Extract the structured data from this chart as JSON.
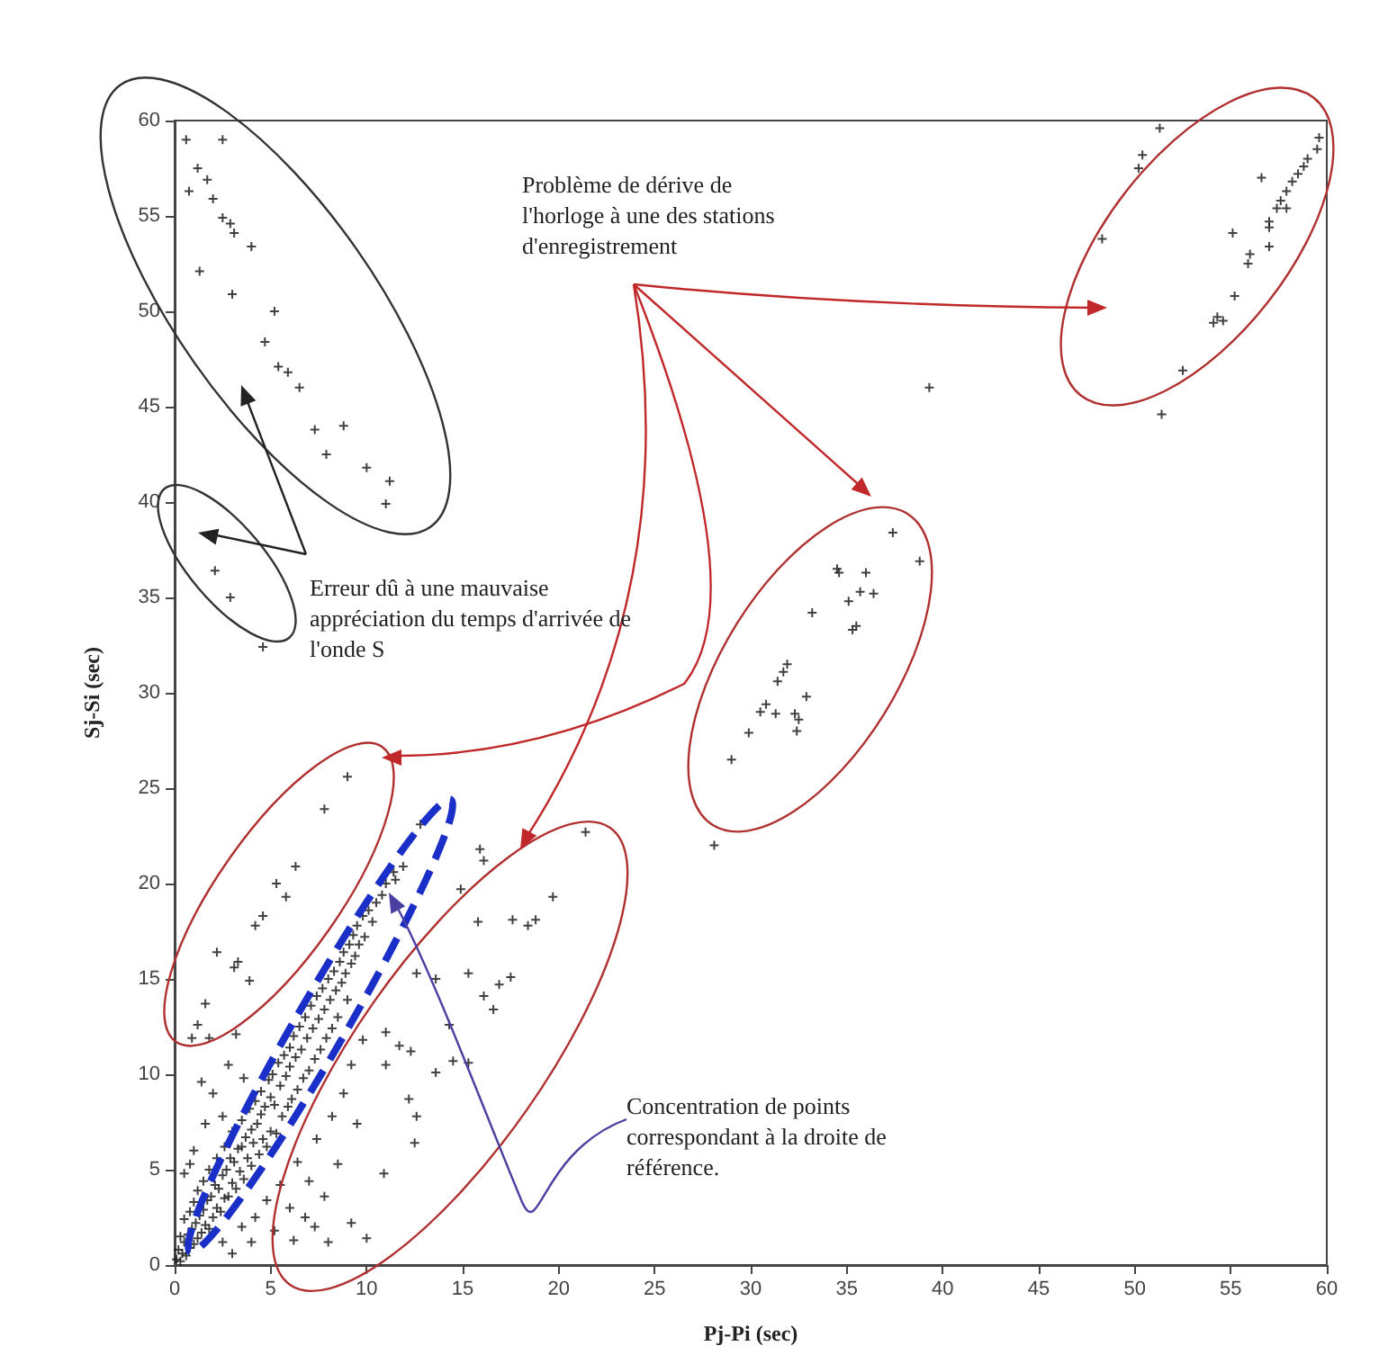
{
  "chart_data": {
    "type": "scatter",
    "xlabel": "Pj-Pi (sec)",
    "ylabel": "Sj-Si (sec)",
    "xlim": [
      0,
      60
    ],
    "ylim": [
      0,
      60
    ],
    "xticks": [
      0,
      5,
      10,
      15,
      20,
      25,
      30,
      35,
      40,
      45,
      50,
      55,
      60
    ],
    "yticks": [
      0,
      5,
      10,
      15,
      20,
      25,
      30,
      35,
      40,
      45,
      50,
      55,
      60
    ],
    "grid": false,
    "marker": "cross",
    "annotations": [
      "Problème de dérive de l'horloge à une des stations d'enregistrement",
      "Erreur dû à une mauvaise appréciation du temps d'arrivée de l'onde S",
      "Concentration de points correspondant à la droite de référence."
    ],
    "series": [
      {
        "color": "#111111",
        "x": [
          0.6,
          2.5,
          1.2,
          1.7,
          0.75,
          2.0,
          2.5,
          2.9,
          3.1,
          4.0,
          1.3,
          3.0,
          5.2,
          4.7,
          5.4,
          5.9,
          6.5,
          7.3,
          8.8,
          7.9,
          10.0,
          11.2,
          11.0,
          2.1,
          2.9,
          4.6,
          51.3,
          50.4,
          50.2,
          59.6,
          59.5,
          59.0,
          58.8,
          58.5,
          58.2,
          56.6,
          57.9,
          57.6,
          57.9,
          57.4,
          57.0,
          57.0,
          48.3,
          55.1,
          57.0,
          56.0,
          55.9,
          55.2,
          54.3,
          54.1,
          54.6,
          52.5,
          51.4,
          39.3,
          37.4,
          38.8,
          34.5,
          34.6,
          36.0,
          35.7,
          36.4,
          35.1,
          33.2,
          35.5,
          35.3,
          31.9,
          31.7,
          31.4,
          32.9,
          30.8,
          30.5,
          31.3,
          32.3,
          32.5,
          29.9,
          32.4,
          29.0,
          28.1,
          9.0,
          7.8,
          6.3,
          5.3,
          5.8,
          4.6,
          4.2,
          2.2,
          3.3,
          3.1,
          3.9,
          1.6,
          1.2,
          0.9,
          1.8,
          21.4,
          15.9,
          16.1,
          14.9,
          19.7,
          18.4,
          18.8,
          17.6,
          15.8,
          13.6,
          12.6,
          15.3,
          16.9,
          17.5,
          16.1,
          16.6,
          14.3,
          11.0,
          11.7,
          12.3,
          14.5,
          11.0,
          15.3,
          13.6,
          12.2,
          12.6,
          12.5,
          10.9,
          9.2,
          10.0,
          12.8,
          11.9,
          11.5,
          0.1,
          0.2,
          0.3,
          0.3,
          0.4,
          0.5,
          0.5,
          0.6,
          0.7,
          0.8,
          0.8,
          0.9,
          1.0,
          1.0,
          1.1,
          1.2,
          1.2,
          1.3,
          1.4,
          1.5,
          1.5,
          1.6,
          1.7,
          1.8,
          1.8,
          1.9,
          2.0,
          2.1,
          2.2,
          2.2,
          2.3,
          2.4,
          2.5,
          2.6,
          2.6,
          2.7,
          2.8,
          2.9,
          3.0,
          3.0,
          3.1,
          3.2,
          3.3,
          3.4,
          3.5,
          3.5,
          3.6,
          3.7,
          3.8,
          3.9,
          4.0,
          4.0,
          4.1,
          4.2,
          4.3,
          4.4,
          4.5,
          4.5,
          4.6,
          4.7,
          4.8,
          4.9,
          5.0,
          5.0,
          5.1,
          5.2,
          5.3,
          5.4,
          5.5,
          5.6,
          5.7,
          5.8,
          5.9,
          6.0,
          6.0,
          6.1,
          6.2,
          6.3,
          6.4,
          6.5,
          6.6,
          6.7,
          6.8,
          6.9,
          7.0,
          7.1,
          7.2,
          7.3,
          7.4,
          7.5,
          7.6,
          7.7,
          7.8,
          7.9,
          8.0,
          8.1,
          8.2,
          8.3,
          8.4,
          8.5,
          8.6,
          8.7,
          8.8,
          8.9,
          9.0,
          9.1,
          9.2,
          9.3,
          9.4,
          9.5,
          9.6,
          9.8,
          9.9,
          10.1,
          10.3,
          10.5,
          10.8,
          11.0,
          11.4,
          2.5,
          3.5,
          4.2,
          4.8,
          5.5,
          6.0,
          6.4,
          6.8,
          7.0,
          7.4,
          7.8,
          8.2,
          8.5,
          8.8,
          9.2,
          9.5,
          9.8,
          3.0,
          4.0,
          5.2,
          6.2,
          7.3,
          8.0,
          0.5,
          1.0,
          1.6,
          1.4,
          2.0,
          2.8,
          3.2,
          0.8,
          2.5,
          3.6
        ],
        "values": [
          59.0,
          59.0,
          57.5,
          56.9,
          56.3,
          55.9,
          54.9,
          54.6,
          54.1,
          53.4,
          52.1,
          50.9,
          50.0,
          48.4,
          47.1,
          46.8,
          46.0,
          43.8,
          44.0,
          42.5,
          41.8,
          41.1,
          39.9,
          36.4,
          35.0,
          32.4,
          59.6,
          58.2,
          57.5,
          59.1,
          58.5,
          58.0,
          57.6,
          57.2,
          56.8,
          57.0,
          56.3,
          55.8,
          55.4,
          55.4,
          54.7,
          54.4,
          53.8,
          54.1,
          53.4,
          53.0,
          52.5,
          50.8,
          49.7,
          49.4,
          49.5,
          46.9,
          44.6,
          46.0,
          38.4,
          36.9,
          36.5,
          36.3,
          36.3,
          35.3,
          35.2,
          34.8,
          34.2,
          33.5,
          33.3,
          31.5,
          31.1,
          30.6,
          29.8,
          29.4,
          29.0,
          28.9,
          28.9,
          28.6,
          27.9,
          28.0,
          26.5,
          22.0,
          25.6,
          23.9,
          20.9,
          20.0,
          19.3,
          18.3,
          17.8,
          16.4,
          15.9,
          15.6,
          14.9,
          13.7,
          12.6,
          11.9,
          11.9,
          22.7,
          21.8,
          21.2,
          19.7,
          19.3,
          17.8,
          18.1,
          18.1,
          18.0,
          15.0,
          15.3,
          15.3,
          14.7,
          15.1,
          14.1,
          13.4,
          12.6,
          12.2,
          11.5,
          11.2,
          10.7,
          10.5,
          10.6,
          10.1,
          8.7,
          7.8,
          6.4,
          4.8,
          2.2,
          1.4,
          23.1,
          20.9,
          20.2,
          0.3,
          0.8,
          0.2,
          1.5,
          0.6,
          1.2,
          2.4,
          0.5,
          1.6,
          0.9,
          2.8,
          1.9,
          1.1,
          3.3,
          2.2,
          1.4,
          3.9,
          2.6,
          1.7,
          4.4,
          2.9,
          2.1,
          3.4,
          1.9,
          5.0,
          3.6,
          2.5,
          4.2,
          3.0,
          5.6,
          4.0,
          2.8,
          4.7,
          3.5,
          6.2,
          5.0,
          3.6,
          5.6,
          4.3,
          7.0,
          5.4,
          4.0,
          6.1,
          4.9,
          7.6,
          6.2,
          4.5,
          6.7,
          5.6,
          8.2,
          7.1,
          5.2,
          6.4,
          8.6,
          7.4,
          5.8,
          9.1,
          7.9,
          6.6,
          8.3,
          6.2,
          9.7,
          8.8,
          7.0,
          10.0,
          8.4,
          6.9,
          10.6,
          9.4,
          7.8,
          11.0,
          9.9,
          8.3,
          11.4,
          10.4,
          8.7,
          12.0,
          10.9,
          9.2,
          12.5,
          11.3,
          9.8,
          13.0,
          11.9,
          10.2,
          13.6,
          12.4,
          10.8,
          14.1,
          12.9,
          11.3,
          14.5,
          13.4,
          11.9,
          15.0,
          13.9,
          12.4,
          15.4,
          14.4,
          13.0,
          15.9,
          14.8,
          16.4,
          15.3,
          13.9,
          16.8,
          15.8,
          17.3,
          16.2,
          17.8,
          16.8,
          18.3,
          17.2,
          18.6,
          18.0,
          19.0,
          19.4,
          20.0,
          20.6,
          1.2,
          2.0,
          2.5,
          3.4,
          4.2,
          3.0,
          5.4,
          2.5,
          4.4,
          6.6,
          3.6,
          7.8,
          5.3,
          9.0,
          10.5,
          7.4,
          11.8,
          0.6,
          1.2,
          1.8,
          1.3,
          2.0,
          1.2,
          4.8,
          6.0,
          7.4,
          9.6,
          9.0,
          10.5,
          12.1,
          5.3,
          7.8,
          9.8
        ]
      }
    ]
  }
}
